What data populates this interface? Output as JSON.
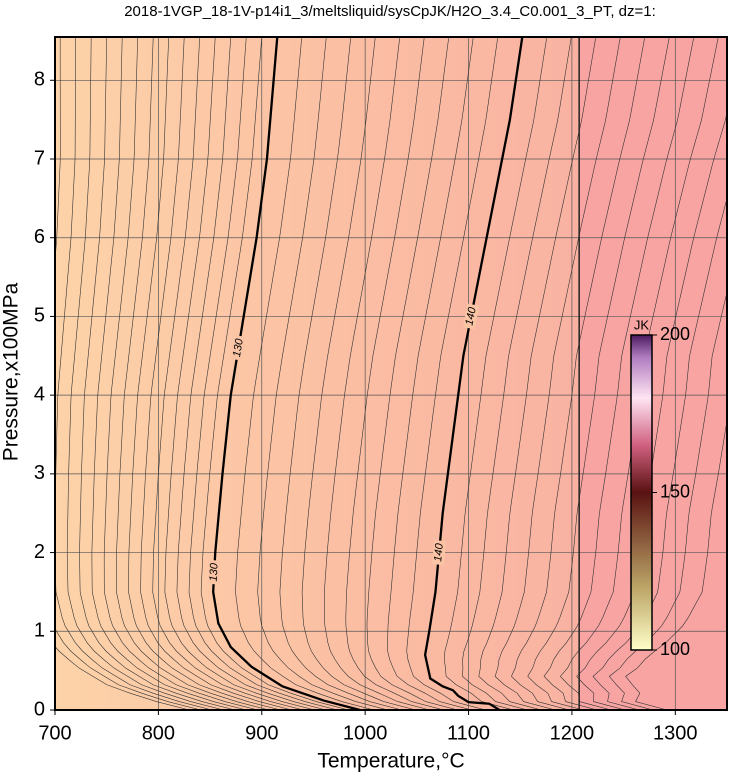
{
  "chart_data": {
    "type": "contour",
    "title": "2018-1VGP_18-1V-p14i1_3/meltsliquid/sysCpJK/H2O_3.4_C0.001_3_PT, dz=1:",
    "x_label": "Temperature,°C",
    "y_label": "Pressure,x100MPa",
    "xlim": [
      700,
      1350
    ],
    "ylim": [
      0,
      8.55
    ],
    "xticks": [
      700,
      800,
      900,
      1000,
      1100,
      1200,
      1300
    ],
    "yticks": [
      0,
      1,
      2,
      3,
      4,
      5,
      6,
      7,
      8
    ],
    "grid": true,
    "contours": [
      {
        "level": 130,
        "x": [
          915,
          905,
          895,
          885,
          870,
          862,
          855,
          853,
          858,
          870,
          890,
          920,
          960,
          995
        ],
        "y": [
          8.55,
          7,
          6,
          5.2,
          4,
          3,
          2,
          1.5,
          1.1,
          0.8,
          0.55,
          0.3,
          0.12,
          0
        ]
      },
      {
        "level": 140,
        "x": [
          1152,
          1140,
          1125,
          1110,
          1095,
          1085,
          1075,
          1068,
          1062,
          1058,
          1063,
          1075,
          1085,
          1090,
          1100,
          1120,
          1130
        ],
        "y": [
          8.55,
          7.5,
          6.5,
          5.5,
          4.5,
          3.5,
          2.5,
          1.5,
          1.0,
          0.7,
          0.4,
          0.3,
          0.25,
          0.18,
          0.1,
          0.08,
          0
        ]
      }
    ],
    "colorbar": {
      "label": "JK",
      "lim": [
        100,
        200
      ],
      "ticks": [
        100,
        150,
        200
      ]
    }
  }
}
